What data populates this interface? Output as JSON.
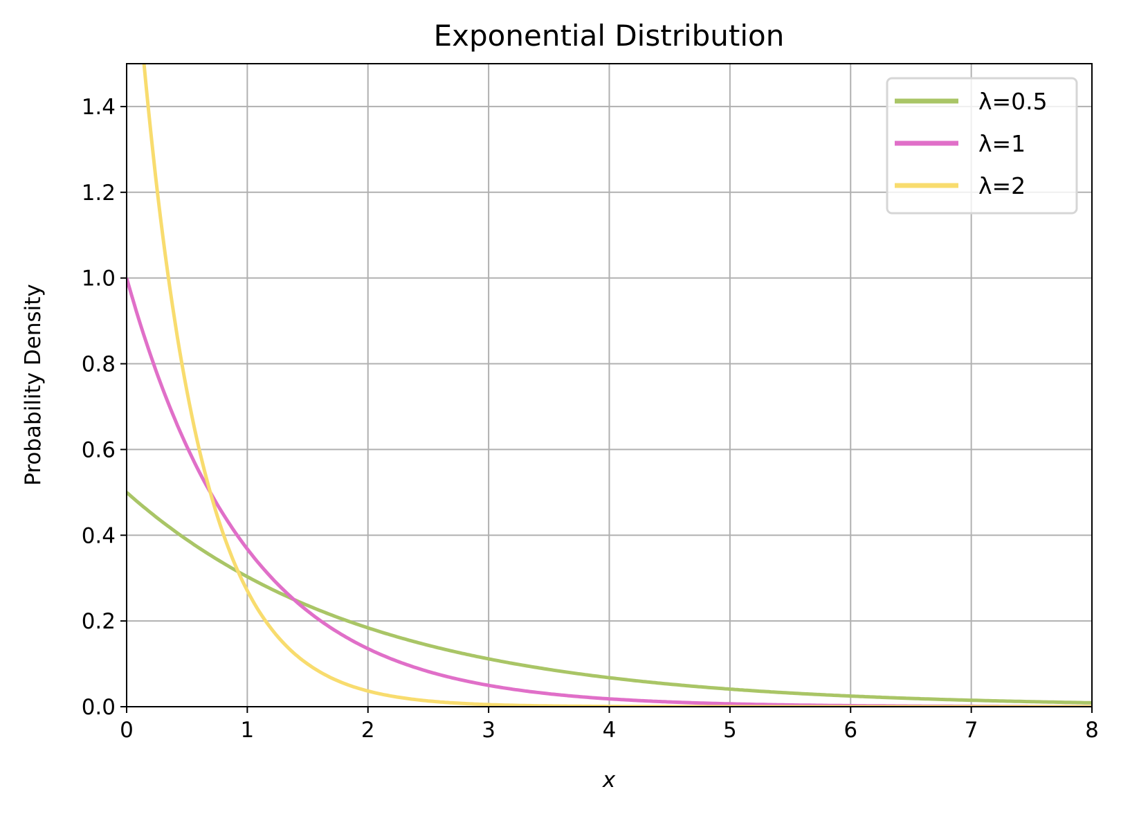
{
  "chart_data": {
    "type": "line",
    "title": "Exponential Distribution",
    "xlabel": "x",
    "ylabel": "Probability Density",
    "xlim": [
      0,
      8
    ],
    "ylim": [
      0,
      1.5
    ],
    "xticks": [
      "0",
      "1",
      "2",
      "3",
      "4",
      "5",
      "6",
      "7",
      "8"
    ],
    "yticks": [
      "0.0",
      "0.2",
      "0.4",
      "0.6",
      "0.8",
      "1.0",
      "1.2",
      "1.4"
    ],
    "grid": true,
    "legend_position": "top-right",
    "series": [
      {
        "name": "λ=0.5",
        "lambda": 0.5,
        "color": "#a9c566",
        "formula": "lambda*exp(-lambda*x)"
      },
      {
        "name": "λ=1",
        "lambda": 1,
        "color": "#e06fc8",
        "formula": "lambda*exp(-lambda*x)"
      },
      {
        "name": "λ=2",
        "lambda": 2,
        "color": "#f8dc6e",
        "formula": "lambda*exp(-lambda*x)"
      }
    ]
  }
}
